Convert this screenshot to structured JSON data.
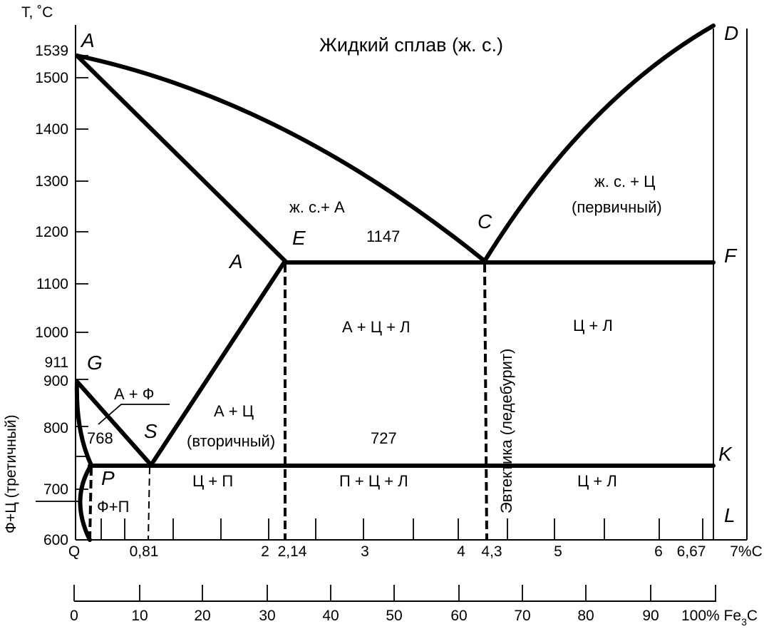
{
  "axes": {
    "y_unit": "T, ˚C",
    "y_ticks": [
      "1539",
      "1500",
      "1400",
      "1300",
      "1200",
      "1100",
      "1000",
      "911",
      "900",
      "800",
      "700",
      "600"
    ],
    "y_side_label": "Ф+Ц (третичный)",
    "x_carbon_ticks": [
      "Q",
      "0,81",
      "2",
      "2,14",
      "3",
      "4",
      "4,3",
      "5",
      "6",
      "6,67"
    ],
    "x_carbon_unit": "7%C",
    "x_cementite_ticks": [
      "0",
      "10",
      "20",
      "30",
      "40",
      "50",
      "60",
      "70",
      "80",
      "90"
    ],
    "x_cementite_unit_prefix": "100% Fe",
    "x_cementite_unit_sub": "3",
    "x_cementite_unit_suffix": "C"
  },
  "points": {
    "A_top": "A",
    "D": "D",
    "C": "C",
    "E": "E",
    "A_mid": "A",
    "F": "F",
    "G": "G",
    "S": "S",
    "P": "P",
    "K": "K",
    "L": "L"
  },
  "regions": {
    "liquid": "Жидкий сплав (ж. с.)",
    "liquid_austenite": "ж. с.+ А",
    "liquid_cementite_1": "ж. с. + Ц",
    "liquid_cementite_2": "(первичный)",
    "eutectic_temp": "1147",
    "a_c_l": "А + Ц + Л",
    "c_l_upper": "Ц + Л",
    "eutectic": "Эвтектика (ледебурит)",
    "a_f": "А + Ф",
    "curie_temp": "768",
    "a_c": "А + Ц",
    "secondary": "(вторичный)",
    "eutectoid_temp": "727",
    "c_p": "Ц + П",
    "p_c_l": "П + Ц + Л",
    "c_l_lower": "Ц + Л",
    "f_p": "Ф+П"
  }
}
